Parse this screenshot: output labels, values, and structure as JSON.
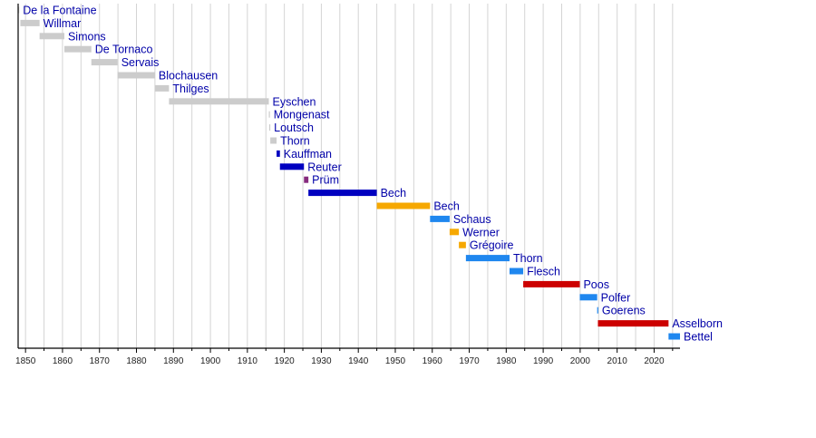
{
  "chart_data": {
    "type": "timeline",
    "title": "",
    "xlabel": "",
    "ylabel": "",
    "xlim": [
      1848,
      2027
    ],
    "x_ticks": [
      1850,
      1860,
      1870,
      1880,
      1890,
      1900,
      1910,
      1920,
      1930,
      1940,
      1950,
      1960,
      1970,
      1980,
      1990,
      2000,
      2010,
      2020
    ],
    "grid": "vertical every 5 years",
    "colors": {
      "gray": "#cccccc",
      "dark_blue": "#0000c0",
      "purple": "#862b7e",
      "orange": "#f6a800",
      "light_blue": "#1f87ef",
      "red": "#cc0000",
      "label": "#0000a8"
    },
    "bars": [
      {
        "name": "De la Fontaine",
        "start": 1848.0,
        "end": 1848.3,
        "color": "gray"
      },
      {
        "name": "Willmar",
        "start": 1848.6,
        "end": 1853.8,
        "color": "gray"
      },
      {
        "name": "Simons",
        "start": 1853.8,
        "end": 1860.5,
        "color": "gray"
      },
      {
        "name": "De Tornaco",
        "start": 1860.5,
        "end": 1867.8,
        "color": "gray"
      },
      {
        "name": "Servais",
        "start": 1867.8,
        "end": 1874.9,
        "color": "gray"
      },
      {
        "name": "Blochausen",
        "start": 1874.9,
        "end": 1885.0,
        "color": "gray"
      },
      {
        "name": "Thilges",
        "start": 1885.0,
        "end": 1888.8,
        "color": "gray"
      },
      {
        "name": "Eyschen",
        "start": 1888.8,
        "end": 1915.8,
        "color": "gray"
      },
      {
        "name": "Mongenast",
        "start": 1915.8,
        "end": 1916.0,
        "color": "gray"
      },
      {
        "name": "Loutsch",
        "start": 1915.9,
        "end": 1916.2,
        "color": "gray"
      },
      {
        "name": "Thorn",
        "start": 1916.2,
        "end": 1917.9,
        "color": "gray"
      },
      {
        "name": "Kauffman",
        "start": 1917.9,
        "end": 1918.8,
        "color": "dark_blue"
      },
      {
        "name": "Reuter",
        "start": 1918.8,
        "end": 1925.3,
        "color": "dark_blue"
      },
      {
        "name": "Prüm",
        "start": 1925.3,
        "end": 1926.5,
        "color": "purple"
      },
      {
        "name": "Bech",
        "start": 1926.5,
        "end": 1945.0,
        "color": "dark_blue"
      },
      {
        "name": "Bech",
        "start": 1945.0,
        "end": 1959.4,
        "color": "orange"
      },
      {
        "name": "Schaus",
        "start": 1959.4,
        "end": 1964.7,
        "color": "light_blue"
      },
      {
        "name": "Werner",
        "start": 1964.7,
        "end": 1967.2,
        "color": "orange"
      },
      {
        "name": "Grégoire",
        "start": 1967.2,
        "end": 1969.1,
        "color": "orange"
      },
      {
        "name": "Thorn",
        "start": 1969.1,
        "end": 1980.9,
        "color": "light_blue"
      },
      {
        "name": "Flesch",
        "start": 1980.9,
        "end": 1984.6,
        "color": "light_blue"
      },
      {
        "name": "Poos",
        "start": 1984.6,
        "end": 1999.9,
        "color": "red"
      },
      {
        "name": "Polfer",
        "start": 1999.9,
        "end": 2004.6,
        "color": "light_blue"
      },
      {
        "name": "Goerens",
        "start": 2004.6,
        "end": 2004.8,
        "color": "light_blue"
      },
      {
        "name": "Asselborn",
        "start": 2004.8,
        "end": 2023.9,
        "color": "red"
      },
      {
        "name": "Bettel",
        "start": 2023.9,
        "end": 2027.0,
        "color": "light_blue"
      }
    ]
  }
}
